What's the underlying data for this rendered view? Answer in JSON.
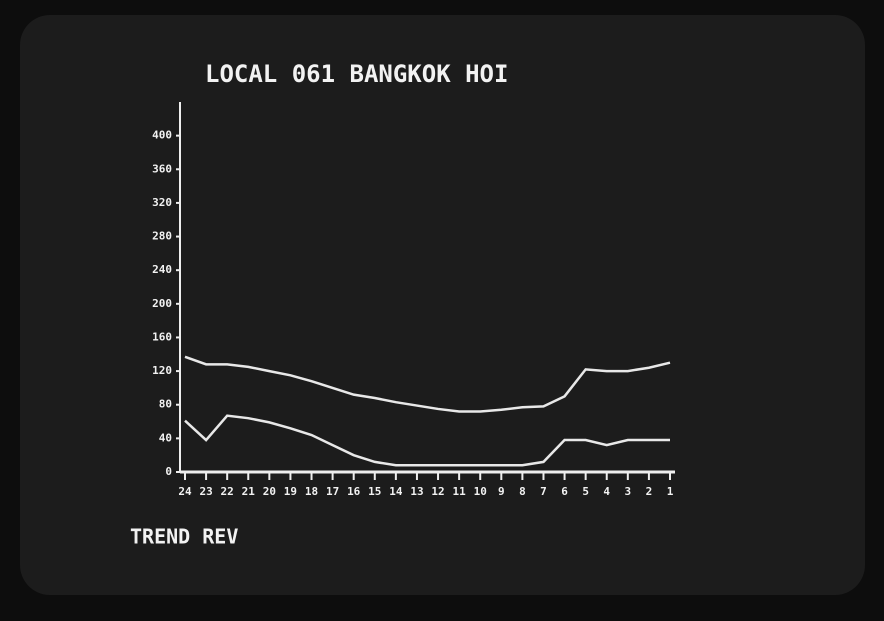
{
  "chart_data": {
    "type": "line",
    "title": "LOCAL  061 BANGKOK HOI",
    "footer": "TREND REV",
    "categories": [
      "24",
      "23",
      "22",
      "21",
      "20",
      "19",
      "18",
      "17",
      "16",
      "15",
      "14",
      "13",
      "12",
      "11",
      "10",
      "9",
      "8",
      "7",
      "6",
      "5",
      "4",
      "3",
      "2",
      "1"
    ],
    "series": [
      {
        "color": "#e8e8e8",
        "values": [
          137,
          128,
          128,
          125,
          120,
          115,
          108,
          100,
          92,
          88,
          83,
          79,
          75,
          72,
          72,
          74,
          77,
          78,
          90,
          122,
          120,
          120,
          124,
          130
        ]
      },
      {
        "color": "#e8e8e8",
        "values": [
          61,
          38,
          67,
          64,
          59,
          52,
          44,
          32,
          20,
          12,
          8,
          8,
          8,
          8,
          8,
          8,
          8,
          12,
          38,
          38,
          32,
          38,
          38,
          38
        ]
      }
    ],
    "ylim": [
      0,
      440
    ],
    "yticks": [
      0,
      40,
      80,
      120,
      160,
      200,
      240,
      280,
      320,
      360,
      400
    ],
    "grid": false
  }
}
